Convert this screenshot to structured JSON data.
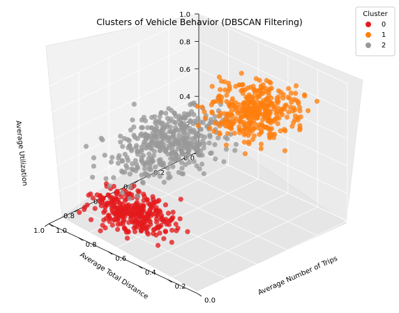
{
  "chart_data": {
    "type": "scatter",
    "projection": "3d",
    "title": "Clusters of Vehicle Behavior (DBSCAN Filtering)",
    "xlabel": "Average Total Distance",
    "ylabel": "Average Number of Trips",
    "zlabel": "Average Utilization",
    "xlim": [
      0,
      1
    ],
    "ylim": [
      0,
      1
    ],
    "zlim": [
      0,
      1
    ],
    "x_ticks": [
      "0.0",
      "0.2",
      "0.4",
      "0.6",
      "0.8",
      "1.0"
    ],
    "y_ticks": [
      "0.0",
      "0.2",
      "0.4",
      "0.6",
      "0.8",
      "1.0"
    ],
    "z_ticks": [
      "0.0",
      "0.2",
      "0.4",
      "0.6",
      "0.8",
      "1.0"
    ],
    "grid": true,
    "legend": {
      "title": "Cluster",
      "placement": "top-right",
      "entries": [
        {
          "label": "0",
          "color": "#e41a1c"
        },
        {
          "label": "1",
          "color": "#ff7f0e"
        },
        {
          "label": "2",
          "color": "#999999"
        }
      ]
    },
    "series": [
      {
        "name": "0",
        "color": "#e41a1c",
        "approx_count": 320,
        "x_range": [
          0.55,
          1.0
        ],
        "y_range": [
          0.3,
          1.0
        ],
        "z_range": [
          0.0,
          0.25
        ]
      },
      {
        "name": "1",
        "color": "#ff7f0e",
        "approx_count": 380,
        "x_range": [
          0.0,
          0.6
        ],
        "y_range": [
          0.0,
          0.65
        ],
        "z_range": [
          0.6,
          1.0
        ]
      },
      {
        "name": "2",
        "color": "#999999",
        "approx_count": 420,
        "x_range": [
          0.0,
          1.0
        ],
        "y_range": [
          0.4,
          1.0
        ],
        "z_range": [
          0.25,
          0.7
        ]
      }
    ]
  }
}
